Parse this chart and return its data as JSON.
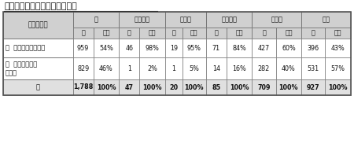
{
  "title": "２．相談件数のカウントの有無",
  "col_groups": [
    "計",
    "都道府県",
    "政令市",
    "中核市等",
    "一般市",
    "町村"
  ],
  "row_headers": [
    "ア  カウントしている",
    "イ  カウントして\nいない",
    "計"
  ],
  "data": [
    [
      "959",
      "54%",
      "46",
      "98%",
      "19",
      "95%",
      "71",
      "84%",
      "427",
      "60%",
      "396",
      "43%"
    ],
    [
      "829",
      "46%",
      "1",
      "2%",
      "1",
      "5%",
      "14",
      "16%",
      "282",
      "40%",
      "531",
      "57%"
    ],
    [
      "1,788",
      "100%",
      "47",
      "100%",
      "20",
      "100%",
      "85",
      "100%",
      "709",
      "100%",
      "927",
      "100%"
    ]
  ],
  "header_bg": "#d0d0d0",
  "white": "#ffffff",
  "total_bg": "#e0e0e0",
  "border_dark": "#777777",
  "border_light": "#aaaaaa",
  "text_dark": "#111111"
}
